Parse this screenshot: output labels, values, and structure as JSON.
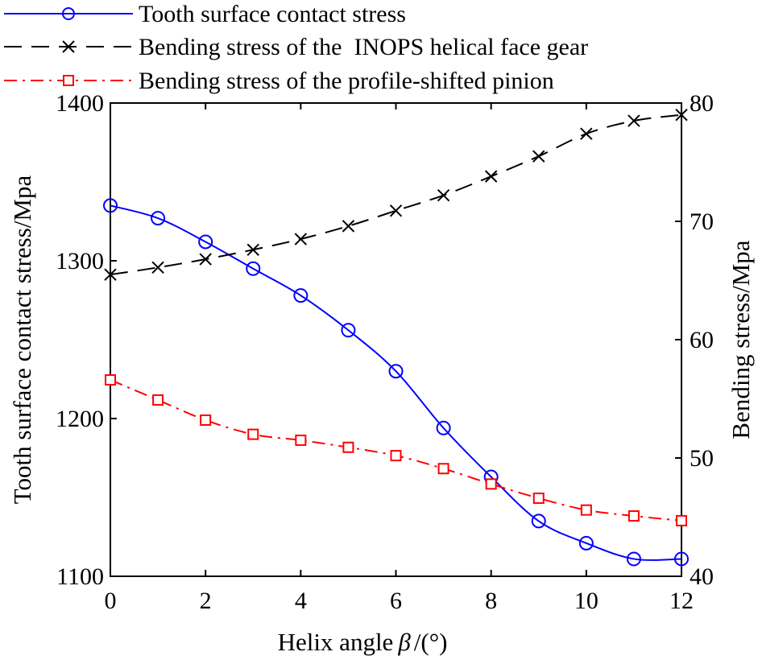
{
  "chart_data": {
    "type": "line",
    "x": [
      0,
      1,
      2,
      3,
      4,
      5,
      6,
      7,
      8,
      9,
      10,
      11,
      12
    ],
    "xlabel": "Helix angle β /(°)",
    "xlabel_parts": {
      "text": "Helix angle",
      "symbol": "β",
      "unit": "/(°)"
    },
    "ylabel_left": "Tooth surface contact stress/Mpa",
    "ylabel_right": "Bending stress/Mpa",
    "xlim": [
      0,
      12
    ],
    "ylim_left": [
      1100,
      1400
    ],
    "ylim_right": [
      40,
      80
    ],
    "xticks": [
      "0",
      "2",
      "4",
      "6",
      "8",
      "10",
      "12"
    ],
    "yticks_left": [
      "1100",
      "1200",
      "1300",
      "1400"
    ],
    "yticks_right": [
      "40",
      "50",
      "60",
      "70",
      "80"
    ],
    "grid": false,
    "legend_position": "top",
    "series": [
      {
        "name": "Tooth surface contact stress",
        "axis": "left",
        "color": "#0000ff",
        "marker": "circle",
        "dash": "solid",
        "values": [
          1335,
          1327,
          1312,
          1295,
          1278,
          1256,
          1230,
          1194,
          1163,
          1135,
          1121,
          1111,
          1111
        ]
      },
      {
        "name": "Bending stress of the  INOPS helical face gear",
        "axis": "right",
        "color": "#000000",
        "marker": "x",
        "dash": "dashed",
        "values": [
          65.5,
          66.1,
          66.8,
          67.6,
          68.5,
          69.6,
          70.9,
          72.2,
          73.8,
          75.5,
          77.4,
          78.5,
          79.0
        ]
      },
      {
        "name": "Bending stress of the profile-shifted pinion",
        "axis": "right",
        "color": "#ff0000",
        "marker": "square",
        "dash": "dashdot",
        "values": [
          56.6,
          54.9,
          53.2,
          52.0,
          51.5,
          50.9,
          50.2,
          49.1,
          47.8,
          46.6,
          45.6,
          45.1,
          44.7
        ]
      }
    ]
  }
}
